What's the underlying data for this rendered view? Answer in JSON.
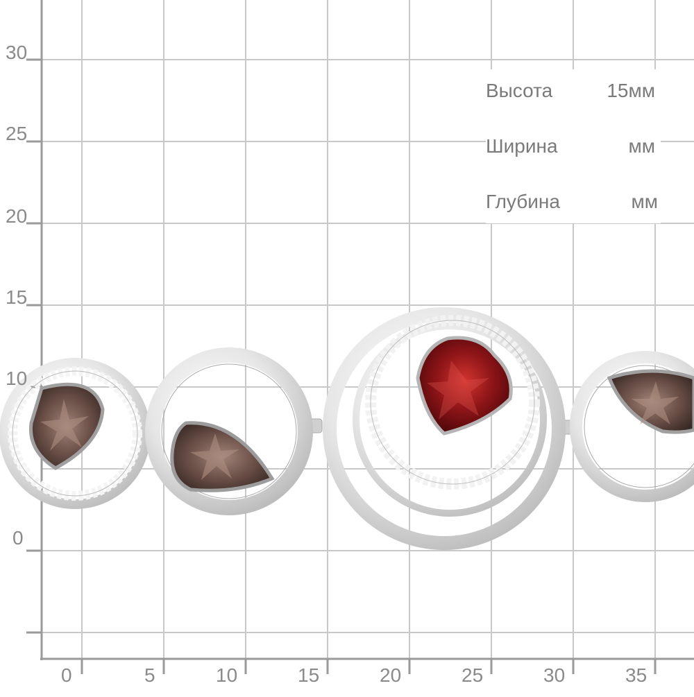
{
  "axis": {
    "y_labels": [
      "30",
      "25",
      "20",
      "15",
      "10",
      "0"
    ],
    "x_labels": [
      "0",
      "5",
      "10",
      "15",
      "20",
      "25",
      "30",
      "35"
    ]
  },
  "dimensions": {
    "height": {
      "label": "Высота",
      "value": "15мм"
    },
    "width": {
      "label": "Ширина",
      "value": "мм"
    },
    "depth": {
      "label": "Глубина",
      "value": "мм"
    }
  },
  "product": {
    "stones": [
      "smoky-quartz",
      "smoky-quartz",
      "garnet",
      "smoky-quartz"
    ],
    "colors": {
      "metal": "#d8d8d8",
      "smoky_quartz": "#6b5048",
      "garnet": "#8e1518",
      "grid": "#c8c8c8",
      "axis": "#9a9a9a"
    }
  }
}
